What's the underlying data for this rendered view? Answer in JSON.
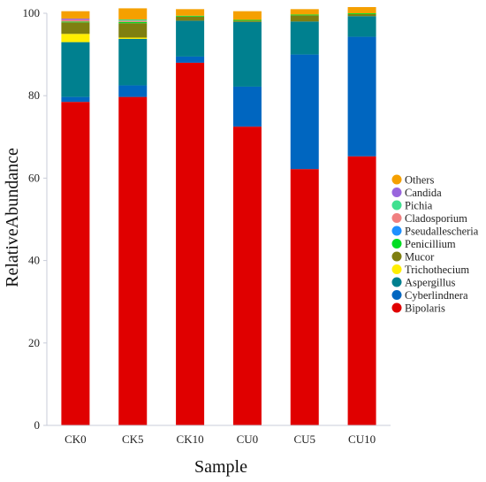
{
  "chart_data": {
    "type": "bar",
    "stacked": true,
    "xlabel": "Sample",
    "ylabel": "RelativeAbundance",
    "ylim": [
      0,
      100
    ],
    "yticks": [
      0,
      20,
      40,
      60,
      80,
      100
    ],
    "grid": false,
    "legend_position": "right",
    "categories": [
      "CK0",
      "CK5",
      "CK10",
      "CU0",
      "CU5",
      "CU10"
    ],
    "series": [
      {
        "name": "Bipolaris",
        "color": "#e00000",
        "values": [
          78.5,
          79.7,
          88.0,
          72.5,
          62.2,
          65.3
        ]
      },
      {
        "name": "Cyberlindnera",
        "color": "#0066c0",
        "values": [
          1.2,
          2.8,
          1.5,
          9.7,
          27.8,
          29.0
        ]
      },
      {
        "name": "Aspergillus",
        "color": "#00808f",
        "values": [
          13.3,
          11.3,
          8.7,
          15.7,
          8.0,
          5.0
        ]
      },
      {
        "name": "Trichothecium",
        "color": "#ffee00",
        "values": [
          2.0,
          0.3,
          0.0,
          0.0,
          0.0,
          0.0
        ]
      },
      {
        "name": "Mucor",
        "color": "#7f7f10",
        "values": [
          2.8,
          3.5,
          1.0,
          0.3,
          1.5,
          0.5
        ]
      },
      {
        "name": "Penicillium",
        "color": "#00dd22",
        "values": [
          0.2,
          0.3,
          0.2,
          0.2,
          0.2,
          0.2
        ]
      },
      {
        "name": "Pseudallescheria",
        "color": "#1e90ff",
        "values": [
          0.0,
          0.0,
          0.0,
          0.0,
          0.0,
          0.0
        ]
      },
      {
        "name": "Cladosporium",
        "color": "#f08080",
        "values": [
          0.4,
          0.3,
          0.0,
          0.0,
          0.0,
          0.0
        ]
      },
      {
        "name": "Pichia",
        "color": "#40e090",
        "values": [
          0.0,
          0.3,
          0.0,
          0.0,
          0.0,
          0.0
        ]
      },
      {
        "name": "Candida",
        "color": "#9966dd",
        "values": [
          0.3,
          0.0,
          0.0,
          0.0,
          0.0,
          0.0
        ]
      },
      {
        "name": "Others",
        "color": "#f5a000",
        "values": [
          1.8,
          2.7,
          1.6,
          2.1,
          1.3,
          1.5
        ]
      }
    ]
  }
}
